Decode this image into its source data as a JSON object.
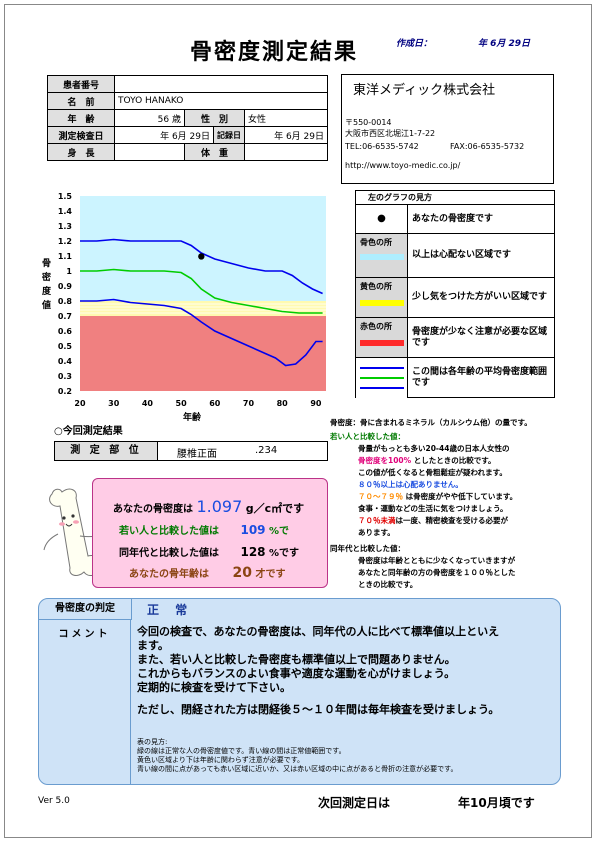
{
  "title": "骨密度測定結果",
  "created_label": "作成日：",
  "created_date": "年 6月 29日",
  "patient": {
    "id_label": "患者番号",
    "id_value": "",
    "name_label": "名　前",
    "name_value": "TOYO HANAKO",
    "age_label": "年　齢",
    "age_value": "56 歳",
    "sex_label": "性　別",
    "sex_value": "女性",
    "date_label": "測定検査日",
    "date_value": "年 6月 29日",
    "record_label": "記録日",
    "record_value": "年 6月 29日",
    "height_label": "身　長",
    "height_value": "",
    "weight_label": "体　重",
    "weight_value": ""
  },
  "company": {
    "name": "東洋メディック株式会社",
    "postal": "〒550-0014",
    "address": "大阪市西区北堀江1-7-22",
    "tel": "TEL:06-6535-5742",
    "fax": "FAX:06-6535-5732",
    "url": "http://www.toyo-medic.co.jp/"
  },
  "chart_data": {
    "type": "line",
    "xlabel": "年齢",
    "ylabel": "骨密度値",
    "xlim": [
      20,
      93
    ],
    "ylim": [
      0.2,
      1.5
    ],
    "x_ticks": [
      20,
      30,
      40,
      50,
      60,
      70,
      80,
      90
    ],
    "y_ticks": [
      "0.2",
      "0.3",
      "0.4",
      "0.5",
      "0.6",
      "0.7",
      "0.8",
      "0.9",
      "1",
      "1.1",
      "1.2",
      "1.3",
      "1.4",
      "1.5"
    ],
    "zones": [
      {
        "range": [
          0.2,
          0.7
        ],
        "color": "#f08080"
      },
      {
        "range": [
          0.7,
          0.8
        ],
        "color": "#fffab0"
      },
      {
        "range": [
          0.8,
          1.5
        ],
        "color": "#ccf4ff"
      }
    ],
    "series": [
      {
        "color": "#0000ee",
        "x": [
          20,
          25,
          30,
          35,
          40,
          45,
          50,
          53,
          56,
          60,
          65,
          70,
          75,
          80,
          83,
          86,
          89,
          92
        ],
        "y": [
          1.2,
          1.2,
          1.21,
          1.2,
          1.2,
          1.2,
          1.2,
          1.17,
          1.12,
          1.08,
          1.05,
          1.02,
          1.0,
          1.0,
          0.97,
          0.92,
          0.88,
          0.85
        ]
      },
      {
        "color": "#00cc00",
        "x": [
          20,
          25,
          30,
          35,
          40,
          45,
          50,
          53,
          56,
          60,
          65,
          70,
          75,
          80,
          85,
          90,
          92
        ],
        "y": [
          1.0,
          1.0,
          1.01,
          1.0,
          1.0,
          1.0,
          0.99,
          0.95,
          0.88,
          0.82,
          0.79,
          0.77,
          0.75,
          0.73,
          0.72,
          0.72,
          0.72
        ]
      },
      {
        "color": "#0000ee",
        "x": [
          20,
          25,
          30,
          35,
          40,
          45,
          50,
          53,
          56,
          60,
          65,
          70,
          75,
          78,
          81,
          84,
          87,
          90,
          92
        ],
        "y": [
          0.8,
          0.8,
          0.81,
          0.79,
          0.78,
          0.77,
          0.75,
          0.71,
          0.66,
          0.6,
          0.55,
          0.5,
          0.45,
          0.42,
          0.37,
          0.38,
          0.44,
          0.53,
          0.53
        ]
      }
    ],
    "point": {
      "x": 56,
      "y": 1.097
    }
  },
  "legend": {
    "header": "左のグラフの見方",
    "rows": [
      {
        "label": "●",
        "text": "あなたの骨密度です"
      },
      {
        "label": "骨色の所",
        "text": "以上は心配ない区域です",
        "color": "#aeeeff"
      },
      {
        "label": "黄色の所",
        "text": "少し気をつけた方がいい区域です",
        "color": "#ffff00"
      },
      {
        "label": "赤色の所",
        "text": "骨密度が少なく注意が必要な区域です",
        "color": "#ff2a2a"
      },
      {
        "label": "",
        "text": "この間は各年齢の平均骨密度範囲です"
      }
    ]
  },
  "current_result_title": "今回測定結果",
  "site": {
    "label": "測 定 部 位",
    "value": "腰椎正面",
    "value2": ".234"
  },
  "results": {
    "bmd_label": "あなたの骨密度は",
    "bmd_value": "1.097",
    "bmd_unit": "g／c㎡です",
    "young_label": "若い人と比較した値は",
    "young_value": "109",
    "young_unit": "%で",
    "same_age_label": "同年代と比較した値は",
    "same_age_value": "128",
    "same_age_unit": "%です",
    "bone_age_label": "あなたの骨年齢は",
    "bone_age_value": "20",
    "bone_age_unit": "才です"
  },
  "notes": {
    "n1": "骨密度：骨に含まれるミネラル（カルシウム他）の量です。",
    "young_header": "若い人と比較した値：",
    "y1": "骨量がもっとも多い20-44歳の日本人女性の",
    "y2a": "骨密度を100%",
    "y2b": "としたときの比較です。",
    "y3": "この値が低くなると骨粗鬆症が疑われます。",
    "y4": "８０％以上は心配ありません。",
    "y5a": "７０～７９％",
    "y5b": "は骨密度がやや低下しています。",
    "y6": "食事・運動などの生活に気をつけましょう。",
    "y7a": "７０％未満",
    "y7b": "は一度、精密検査を受ける必要が",
    "y8": "あります。",
    "same_header": "同年代と比較した値：",
    "s1": "骨密度は年齢とともに少なくなっていきますが",
    "s2": "あなたと同年齢の方の骨密度を１００％とした",
    "s3": "ときの比較です。"
  },
  "judgement": {
    "label": "骨密度の判定",
    "value": "正 常",
    "comment_label": "コメント",
    "lines": [
      "今回の検査で、あなたの骨密度は、同年代の人に比べて標準値以上といえ",
      "ます。",
      "また、若い人と比較した骨密度も標準値以上で問題ありません。",
      "これからもバランスのよい食事や適度な運動を心がけましょう。",
      "定期的に検査を受けて下さい。",
      "",
      "ただし、閉経された方は閉経後５～１０年間は毎年検査を受けましょう。"
    ],
    "foot": [
      "表の見方:",
      "緑の線は正常な人の骨密度値です。青い線の間は正常値範囲です。",
      "黄色い区域より下は年齢に関わらず注意が必要です。",
      "青い線の間に点があっても赤い区域に近いか、又は赤い区域の中に点があると骨折の注意が必要です。"
    ]
  },
  "version": "Ver 5.0",
  "next_label": "次回測定日は",
  "next_value": "年10月頃です"
}
